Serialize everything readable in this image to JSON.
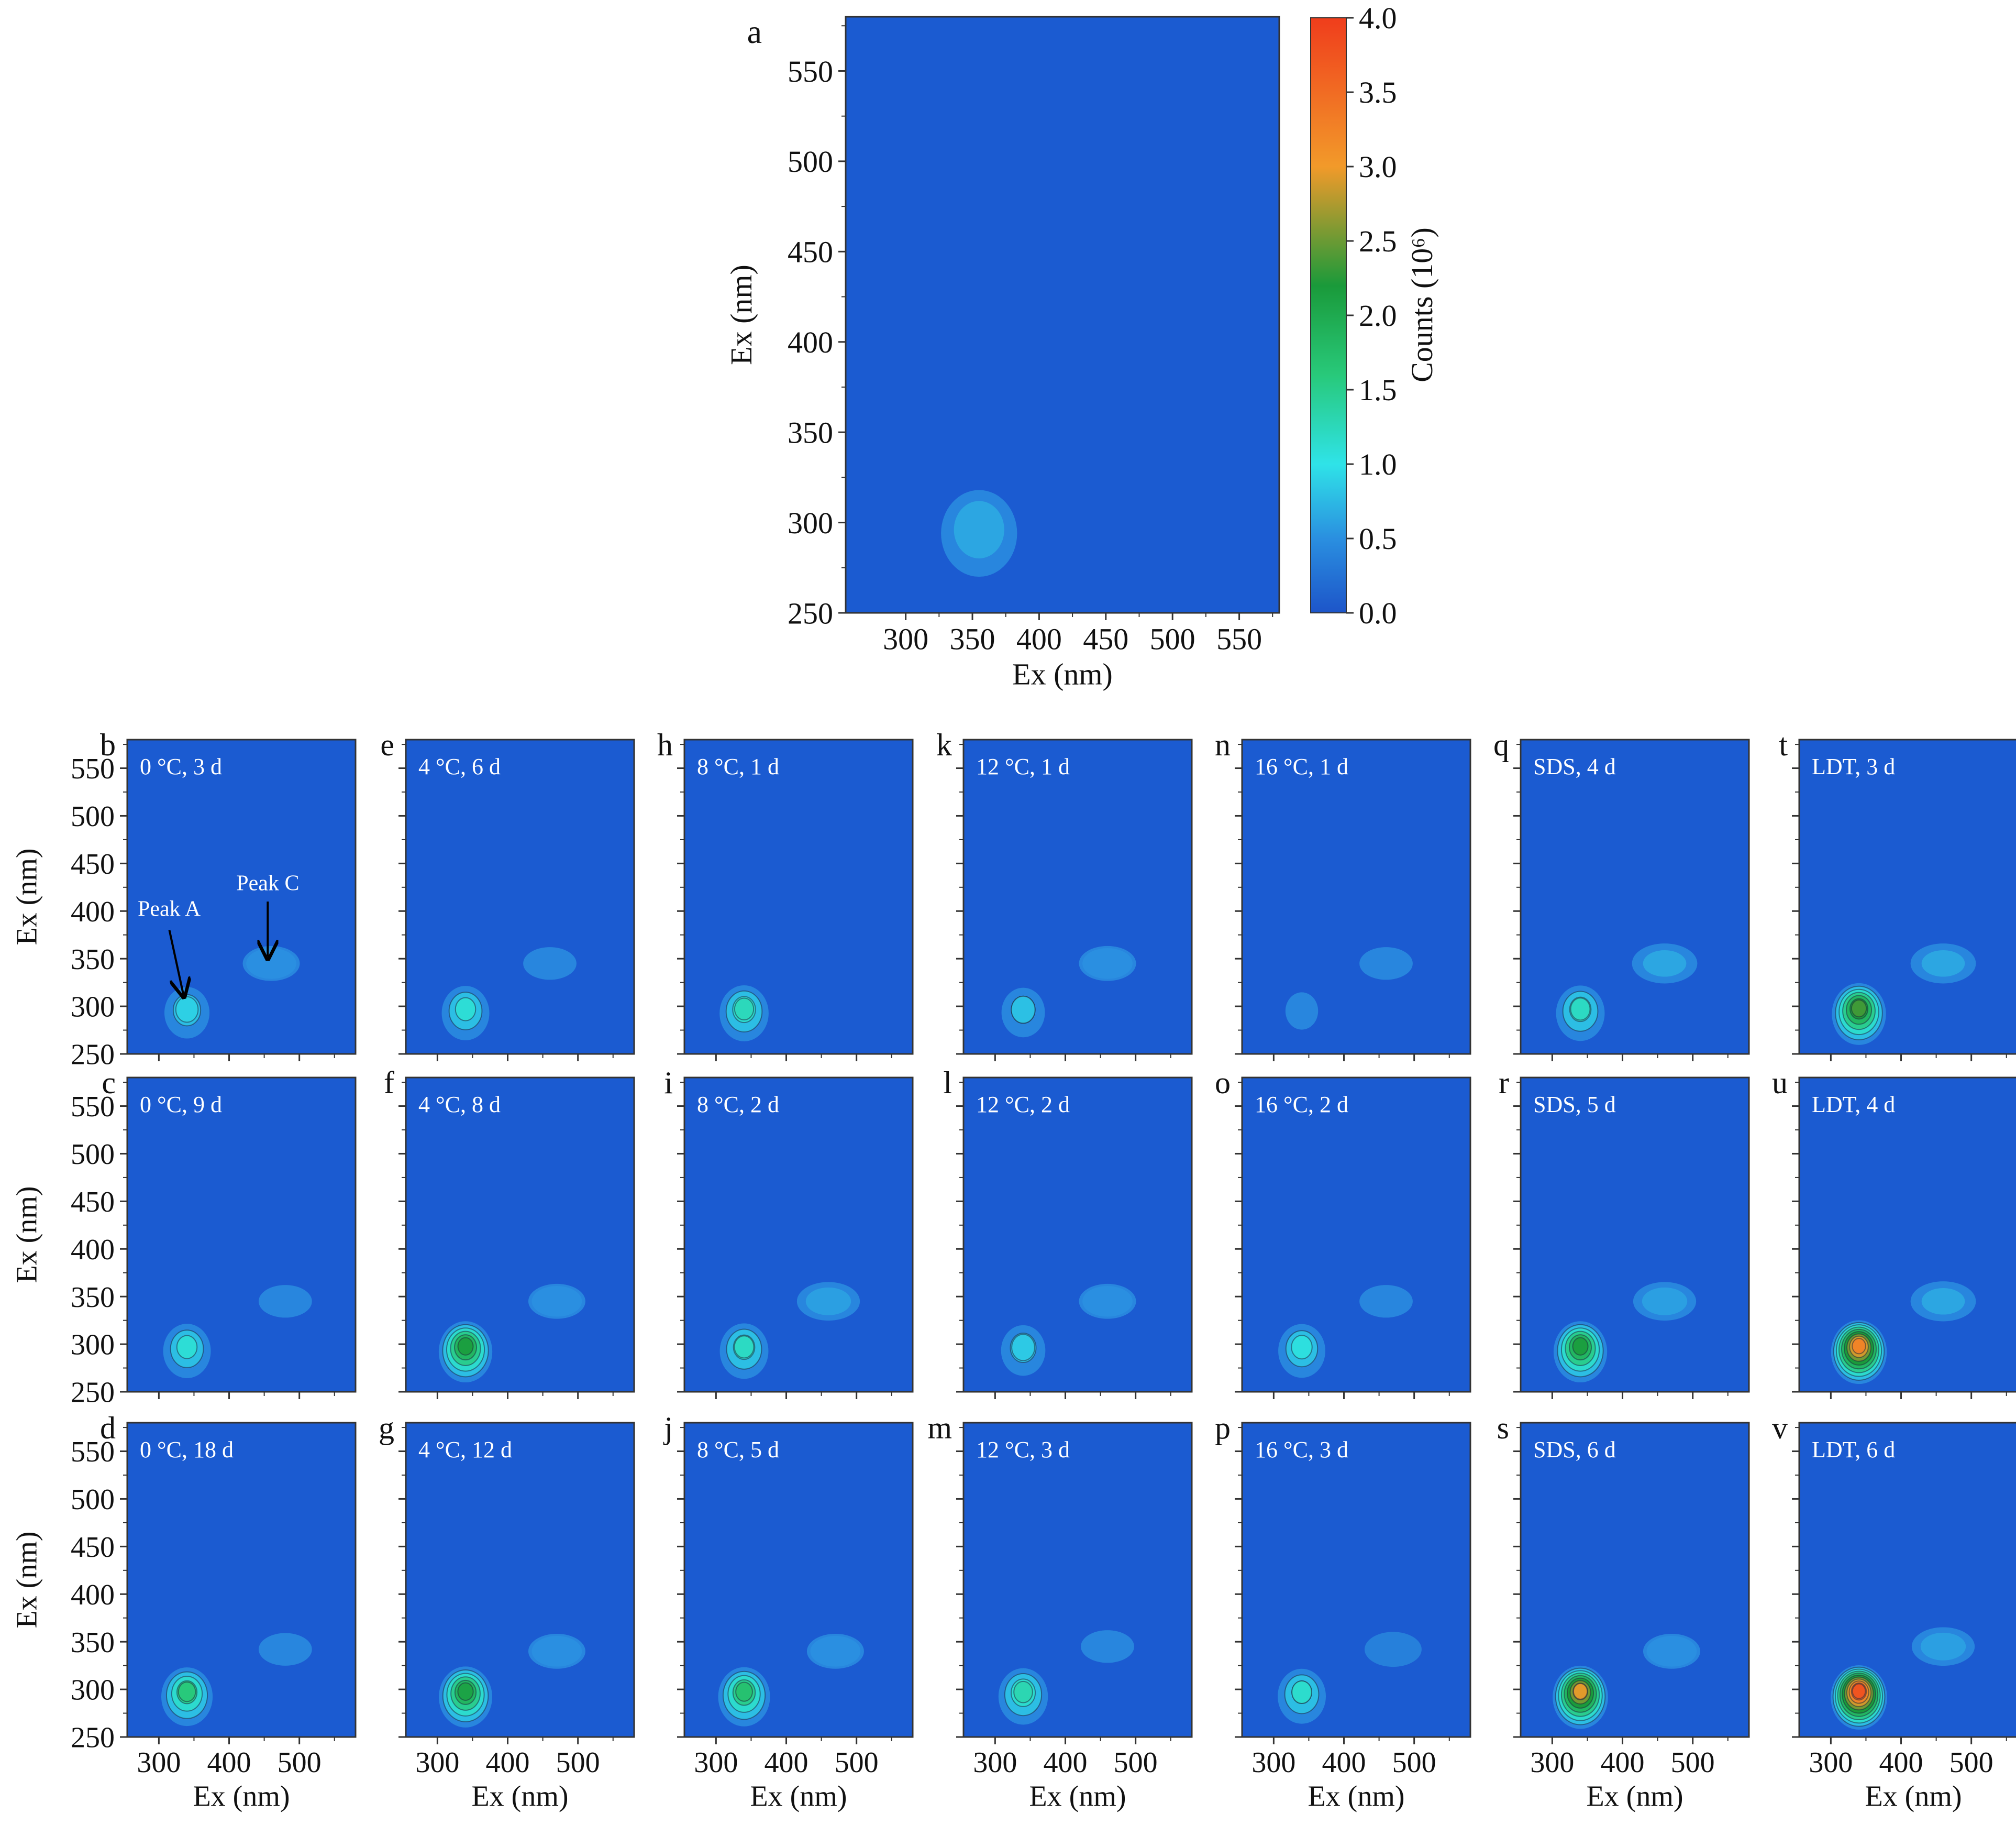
{
  "colors": {
    "background_min": "#1b5bd1",
    "colorbar_stops": [
      "#1d55c9",
      "#2a8fe0",
      "#2fe3e8",
      "#28c97a",
      "#1a9a3a",
      "#f29a2a",
      "#f03d1c"
    ]
  },
  "chart_data": [
    {
      "panel": "a",
      "type": "heatmap",
      "label": "",
      "xlabel": "Ex (nm)",
      "ylabel": "Ex (nm)",
      "xlim": [
        255,
        580
      ],
      "ylim": [
        250,
        580
      ],
      "xticks": [
        "300",
        "350",
        "400",
        "450",
        "500",
        "550"
      ],
      "yticks": [
        "250",
        "300",
        "350",
        "400",
        "450",
        "500",
        "550"
      ],
      "peaks": [
        {
          "x": 355,
          "y": 300,
          "value": 0.5
        }
      ],
      "colorbar": {
        "label": "Counts (10⁶)",
        "min": 0.0,
        "max": 4.0,
        "ticks": [
          "0.0",
          "0.5",
          "1.0",
          "1.5",
          "2.0",
          "2.5",
          "3.0",
          "3.5",
          "4.0"
        ]
      }
    },
    {
      "panel": "b",
      "type": "heatmap",
      "label": "0 °C, 3 d",
      "xlim": [
        255,
        580
      ],
      "ylim": [
        250,
        580
      ],
      "peaks": [
        {
          "x": 340,
          "y": 300,
          "value": 0.75
        },
        {
          "x": 460,
          "y": 345,
          "value": 0.35
        }
      ],
      "annotations": [
        {
          "text": "Peak A",
          "target": [
            335,
            312
          ]
        },
        {
          "text": "Peak C",
          "target": [
            455,
            352
          ]
        }
      ]
    },
    {
      "panel": "c",
      "type": "heatmap",
      "label": "0 °C, 9 d",
      "xlim": [
        255,
        580
      ],
      "ylim": [
        250,
        580
      ],
      "peaks": [
        {
          "x": 340,
          "y": 300,
          "value": 0.95
        },
        {
          "x": 480,
          "y": 345,
          "value": 0.3
        }
      ]
    },
    {
      "panel": "d",
      "type": "heatmap",
      "label": "0 °C, 18 d",
      "xlim": [
        255,
        580
      ],
      "ylim": [
        250,
        580
      ],
      "peaks": [
        {
          "x": 340,
          "y": 300,
          "value": 1.45
        },
        {
          "x": 480,
          "y": 342,
          "value": 0.3
        }
      ]
    },
    {
      "panel": "e",
      "type": "heatmap",
      "label": "4 °C, 6 d",
      "xlim": [
        255,
        580
      ],
      "ylim": [
        250,
        580
      ],
      "peaks": [
        {
          "x": 340,
          "y": 300,
          "value": 0.95
        },
        {
          "x": 460,
          "y": 345,
          "value": 0.3
        }
      ]
    },
    {
      "panel": "f",
      "type": "heatmap",
      "label": "4 °C, 8 d",
      "xlim": [
        255,
        580
      ],
      "ylim": [
        250,
        580
      ],
      "peaks": [
        {
          "x": 340,
          "y": 300,
          "value": 2.0
        },
        {
          "x": 470,
          "y": 345,
          "value": 0.35
        }
      ]
    },
    {
      "panel": "g",
      "type": "heatmap",
      "label": "4 °C, 12 d",
      "xlim": [
        255,
        580
      ],
      "ylim": [
        250,
        580
      ],
      "peaks": [
        {
          "x": 340,
          "y": 300,
          "value": 1.95
        },
        {
          "x": 470,
          "y": 340,
          "value": 0.35
        }
      ]
    },
    {
      "panel": "h",
      "type": "heatmap",
      "label": "8 °C, 1 d",
      "xlim": [
        255,
        580
      ],
      "ylim": [
        250,
        580
      ],
      "peaks": [
        {
          "x": 340,
          "y": 300,
          "value": 1.1
        }
      ]
    },
    {
      "panel": "i",
      "type": "heatmap",
      "label": "8 °C, 2 d",
      "xlim": [
        255,
        580
      ],
      "ylim": [
        250,
        580
      ],
      "peaks": [
        {
          "x": 340,
          "y": 300,
          "value": 1.05
        },
        {
          "x": 460,
          "y": 345,
          "value": 0.45
        }
      ]
    },
    {
      "panel": "j",
      "type": "heatmap",
      "label": "8 °C, 5 d",
      "xlim": [
        255,
        580
      ],
      "ylim": [
        250,
        580
      ],
      "peaks": [
        {
          "x": 340,
          "y": 300,
          "value": 1.55
        },
        {
          "x": 470,
          "y": 340,
          "value": 0.35
        }
      ]
    },
    {
      "panel": "k",
      "type": "heatmap",
      "label": "12 °C, 1 d",
      "xlim": [
        255,
        580
      ],
      "ylim": [
        250,
        580
      ],
      "peaks": [
        {
          "x": 340,
          "y": 300,
          "value": 0.65
        },
        {
          "x": 460,
          "y": 345,
          "value": 0.35
        }
      ]
    },
    {
      "panel": "l",
      "type": "heatmap",
      "label": "12 °C, 2 d",
      "xlim": [
        255,
        580
      ],
      "ylim": [
        250,
        580
      ],
      "peaks": [
        {
          "x": 340,
          "y": 300,
          "value": 0.7
        },
        {
          "x": 460,
          "y": 345,
          "value": 0.35
        }
      ]
    },
    {
      "panel": "m",
      "type": "heatmap",
      "label": "12 °C, 3 d",
      "xlim": [
        255,
        580
      ],
      "ylim": [
        250,
        580
      ],
      "peaks": [
        {
          "x": 340,
          "y": 300,
          "value": 1.15
        },
        {
          "x": 460,
          "y": 345,
          "value": 0.3
        }
      ]
    },
    {
      "panel": "n",
      "type": "heatmap",
      "label": "16 °C, 1 d",
      "xlim": [
        255,
        580
      ],
      "ylim": [
        250,
        580
      ],
      "peaks": [
        {
          "x": 340,
          "y": 300,
          "value": 0.3
        },
        {
          "x": 460,
          "y": 345,
          "value": 0.3
        }
      ]
    },
    {
      "panel": "o",
      "type": "heatmap",
      "label": "16 °C, 2 d",
      "xlim": [
        255,
        580
      ],
      "ylim": [
        250,
        580
      ],
      "peaks": [
        {
          "x": 340,
          "y": 300,
          "value": 0.9
        },
        {
          "x": 460,
          "y": 345,
          "value": 0.3
        }
      ]
    },
    {
      "panel": "p",
      "type": "heatmap",
      "label": "16 °C, 3 d",
      "xlim": [
        255,
        580
      ],
      "ylim": [
        250,
        580
      ],
      "peaks": [
        {
          "x": 340,
          "y": 300,
          "value": 1.0
        },
        {
          "x": 470,
          "y": 342,
          "value": 0.25
        }
      ]
    },
    {
      "panel": "q",
      "type": "heatmap",
      "label": "SDS, 4 d",
      "xlim": [
        255,
        580
      ],
      "ylim": [
        250,
        580
      ],
      "peaks": [
        {
          "x": 340,
          "y": 300,
          "value": 1.05
        },
        {
          "x": 460,
          "y": 345,
          "value": 0.5
        }
      ]
    },
    {
      "panel": "r",
      "type": "heatmap",
      "label": "SDS, 5 d",
      "xlim": [
        255,
        580
      ],
      "ylim": [
        250,
        580
      ],
      "peaks": [
        {
          "x": 340,
          "y": 300,
          "value": 2.0
        },
        {
          "x": 460,
          "y": 345,
          "value": 0.45
        }
      ]
    },
    {
      "panel": "s",
      "type": "heatmap",
      "label": "SDS, 6 d",
      "xlim": [
        255,
        580
      ],
      "ylim": [
        250,
        580
      ],
      "peaks": [
        {
          "x": 340,
          "y": 300,
          "value": 2.8
        },
        {
          "x": 470,
          "y": 340,
          "value": 0.35
        }
      ]
    },
    {
      "panel": "t",
      "type": "heatmap",
      "label": "LDT, 3 d",
      "xlim": [
        255,
        580
      ],
      "ylim": [
        250,
        580
      ],
      "peaks": [
        {
          "x": 340,
          "y": 300,
          "value": 2.2
        },
        {
          "x": 460,
          "y": 345,
          "value": 0.5
        }
      ]
    },
    {
      "panel": "u",
      "type": "heatmap",
      "label": "LDT, 4 d",
      "xlim": [
        255,
        580
      ],
      "ylim": [
        250,
        580
      ],
      "peaks": [
        {
          "x": 340,
          "y": 300,
          "value": 3.1
        },
        {
          "x": 460,
          "y": 345,
          "value": 0.5
        }
      ]
    },
    {
      "panel": "v",
      "type": "heatmap",
      "label": "LDT, 6 d",
      "xlim": [
        255,
        580
      ],
      "ylim": [
        250,
        580
      ],
      "peaks": [
        {
          "x": 340,
          "y": 300,
          "value": 3.6
        },
        {
          "x": 460,
          "y": 345,
          "value": 0.45
        }
      ]
    }
  ],
  "small_axes": {
    "xlabel": "Ex (nm)",
    "ylabel": "Ex (nm)",
    "xticks": [
      "300",
      "400",
      "500"
    ],
    "yticks": [
      "250",
      "300",
      "350",
      "400",
      "450",
      "500",
      "550"
    ]
  }
}
